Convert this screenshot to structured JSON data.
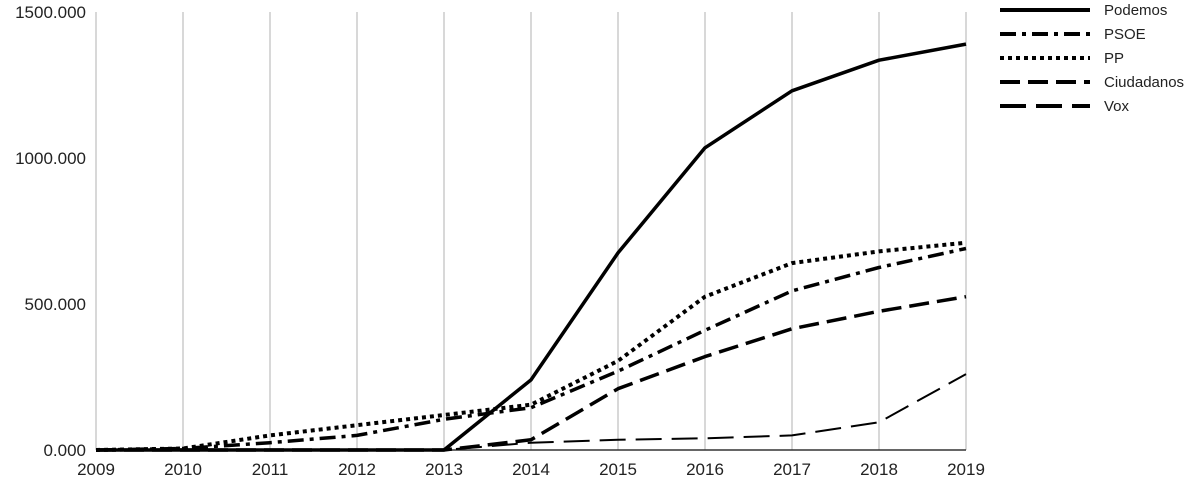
{
  "chart_data": {
    "type": "line",
    "x": [
      2009,
      2010,
      2011,
      2012,
      2013,
      2014,
      2015,
      2016,
      2017,
      2018,
      2019
    ],
    "x_tick_labels": [
      "2009",
      "2010",
      "2011",
      "2012",
      "2013",
      "2014",
      "2015",
      "2016",
      "2017",
      "2018",
      "2019"
    ],
    "ylim": [
      0,
      1500
    ],
    "y_ticks": [
      0,
      500,
      1000,
      1500
    ],
    "y_tick_labels": [
      "0.000",
      "500.000",
      "1000.000",
      "1500.000"
    ],
    "grid": "vertical",
    "legend_position": "top-right",
    "title": "",
    "xlabel": "",
    "ylabel": "",
    "series": [
      {
        "name": "Podemos",
        "style": "solid",
        "values": [
          0,
          0,
          0,
          0,
          0,
          240,
          675,
          1035,
          1230,
          1335,
          1390
        ]
      },
      {
        "name": "PSOE",
        "style": "dash-dot",
        "values": [
          0,
          5,
          25,
          50,
          105,
          145,
          270,
          410,
          545,
          625,
          690
        ]
      },
      {
        "name": "PP",
        "style": "dotted",
        "values": [
          0,
          5,
          50,
          85,
          120,
          155,
          305,
          525,
          640,
          680,
          710
        ]
      },
      {
        "name": "Ciudadanos",
        "style": "dashed",
        "values": [
          0,
          0,
          0,
          0,
          0,
          35,
          210,
          320,
          415,
          475,
          525
        ]
      },
      {
        "name": "Vox",
        "style": "long-dash",
        "values": [
          0,
          0,
          0,
          0,
          0,
          25,
          35,
          40,
          50,
          95,
          260
        ]
      }
    ]
  }
}
